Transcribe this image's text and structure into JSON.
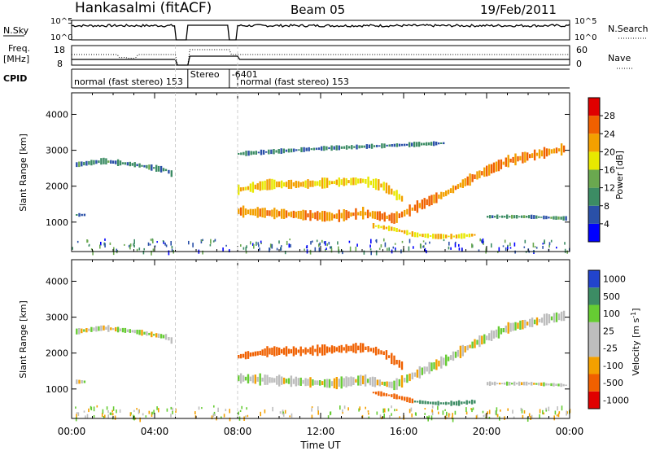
{
  "header": {
    "station": "Hankasalmi (fitACF)",
    "beam": "Beam 05",
    "date": "19/Feb/2011"
  },
  "summary": {
    "nsky_label": "N.Sky",
    "nsearch_label": "N.Search",
    "freq_label_1": "Freq.",
    "freq_label_2": "[MHz]",
    "nave_label": "Nave",
    "cpid_label": "CPID",
    "nsky_ticks": [
      "10^5",
      "10^0"
    ],
    "nsearch_ticks": [
      "10^5",
      "10^0"
    ],
    "freq_ticks": [
      "18",
      "8"
    ],
    "nave_ticks": [
      "60",
      "0"
    ],
    "cpid_segments": [
      {
        "text": "normal (fast stereo) 153",
        "start_h": 0,
        "end_h": 5
      },
      {
        "text": "Stereo",
        "start_h": 5.6,
        "end_h": 7.6
      },
      {
        "text": "-6401",
        "start_h": 7.6,
        "end_h": 8
      },
      {
        "text": "normal (fast stereo) 153",
        "start_h": 8,
        "end_h": 24
      }
    ],
    "gaps_h": [
      [
        5.0,
        5.6
      ],
      [
        7.6,
        8.0
      ]
    ]
  },
  "colors": {
    "power": [
      "#0000ff",
      "#2a50a8",
      "#3c8c64",
      "#6aa84f",
      "#e8e800",
      "#f3a000",
      "#f06000",
      "#e00000"
    ],
    "velocity": [
      "#2244cc",
      "#3c8c64",
      "#66cc33",
      "#bdbdbd",
      "#bdbdbd",
      "#f3a000",
      "#f06000",
      "#e00000"
    ],
    "ground_scatter": "#bdbdbd"
  },
  "chart_data": [
    {
      "type": "heatmap",
      "panel": "power",
      "xlabel": "Time UT",
      "ylabel": "Slant Range [km]",
      "x_ticks": [
        "00:00",
        "04:00",
        "08:00",
        "12:00",
        "16:00",
        "20:00",
        "00:00"
      ],
      "x_range_h": [
        0,
        24
      ],
      "y_ticks": [
        1000,
        2000,
        3000,
        4000
      ],
      "ylim": [
        180,
        4600
      ],
      "colorbar_label": "Power [dB]",
      "colorbar_ticks": [
        4,
        8,
        12,
        16,
        20,
        24,
        28
      ],
      "colorbar_range": [
        0,
        32
      ],
      "bands": [
        {
          "t": [
            0.2,
            1.5,
            3.0,
            4.5,
            4.9
          ],
          "r": [
            2600,
            2700,
            2600,
            2450,
            2300
          ],
          "w": 120,
          "lvl": 9
        },
        {
          "t": [
            0.2,
            0.7
          ],
          "r": [
            1200,
            1200
          ],
          "w": 80,
          "lvl": 10
        },
        {
          "t": [
            8.0,
            9.5,
            11.0,
            12.5,
            14.0,
            15.5,
            16.5,
            18.0,
            19.5,
            21.0,
            22.5,
            23.8
          ],
          "r": [
            1300,
            1250,
            1200,
            1150,
            1250,
            1100,
            1400,
            1800,
            2300,
            2700,
            2900,
            3050
          ],
          "w": 220,
          "lvl": 24
        },
        {
          "t": [
            8.0,
            9.5,
            11.0,
            12.5,
            14.0,
            15.0,
            16.0
          ],
          "r": [
            1900,
            2050,
            2050,
            2100,
            2150,
            2000,
            1600
          ],
          "w": 200,
          "lvl": 20
        },
        {
          "t": [
            14.5,
            15.5,
            16.5,
            17.5,
            18.5,
            19.5
          ],
          "r": [
            900,
            800,
            650,
            600,
            600,
            650
          ],
          "w": 100,
          "lvl": 20
        },
        {
          "t": [
            8.0,
            12.0,
            16.0,
            18.0
          ],
          "r": [
            2900,
            3050,
            3150,
            3200
          ],
          "w": 100,
          "lvl": 8
        },
        {
          "t": [
            20.0,
            22.0,
            23.9
          ],
          "r": [
            1150,
            1150,
            1100
          ],
          "w": 80,
          "lvl": 9
        }
      ]
    },
    {
      "type": "heatmap",
      "panel": "velocity",
      "xlabel": "Time UT",
      "ylabel": "Slant Range [km]",
      "x_ticks": [
        "00:00",
        "04:00",
        "08:00",
        "12:00",
        "16:00",
        "20:00",
        "00:00"
      ],
      "x_range_h": [
        0,
        24
      ],
      "y_ticks": [
        1000,
        2000,
        3000,
        4000
      ],
      "ylim": [
        180,
        4600
      ],
      "colorbar_label": "Velocity [m s^-1]",
      "colorbar_ticks": [
        "1000",
        "500",
        "100",
        "25",
        "-25",
        "-100",
        "-500",
        "-1000"
      ],
      "bands": [
        {
          "t": [
            0.2,
            1.5,
            3.0,
            4.5,
            4.9
          ],
          "r": [
            2600,
            2700,
            2600,
            2450,
            2300
          ],
          "w": 120,
          "v": 0
        },
        {
          "t": [
            0.2,
            0.7
          ],
          "r": [
            1200,
            1200
          ],
          "w": 80,
          "v": 0
        },
        {
          "t": [
            8.0,
            9.5,
            11.0,
            12.5,
            14.0,
            15.5,
            16.5,
            18.0,
            19.5,
            21.0,
            22.5,
            23.8
          ],
          "r": [
            1300,
            1250,
            1200,
            1150,
            1250,
            1100,
            1400,
            1800,
            2300,
            2700,
            2900,
            3050
          ],
          "w": 220,
          "v": 0
        },
        {
          "t": [
            8.0,
            9.5,
            11.0,
            12.5,
            14.0,
            15.0,
            16.0
          ],
          "r": [
            1900,
            2050,
            2050,
            2100,
            2150,
            2000,
            1600
          ],
          "w": 200,
          "v": -300
        },
        {
          "t": [
            14.5,
            15.5,
            16.5
          ],
          "r": [
            900,
            800,
            650
          ],
          "w": 100,
          "v": -300
        },
        {
          "t": [
            16.5,
            17.5,
            18.5,
            19.5
          ],
          "r": [
            650,
            600,
            600,
            650
          ],
          "w": 100,
          "v": 200
        },
        {
          "t": [
            20.0,
            22.0,
            23.9
          ],
          "r": [
            1150,
            1150,
            1100
          ],
          "w": 80,
          "v": 0
        }
      ]
    }
  ]
}
